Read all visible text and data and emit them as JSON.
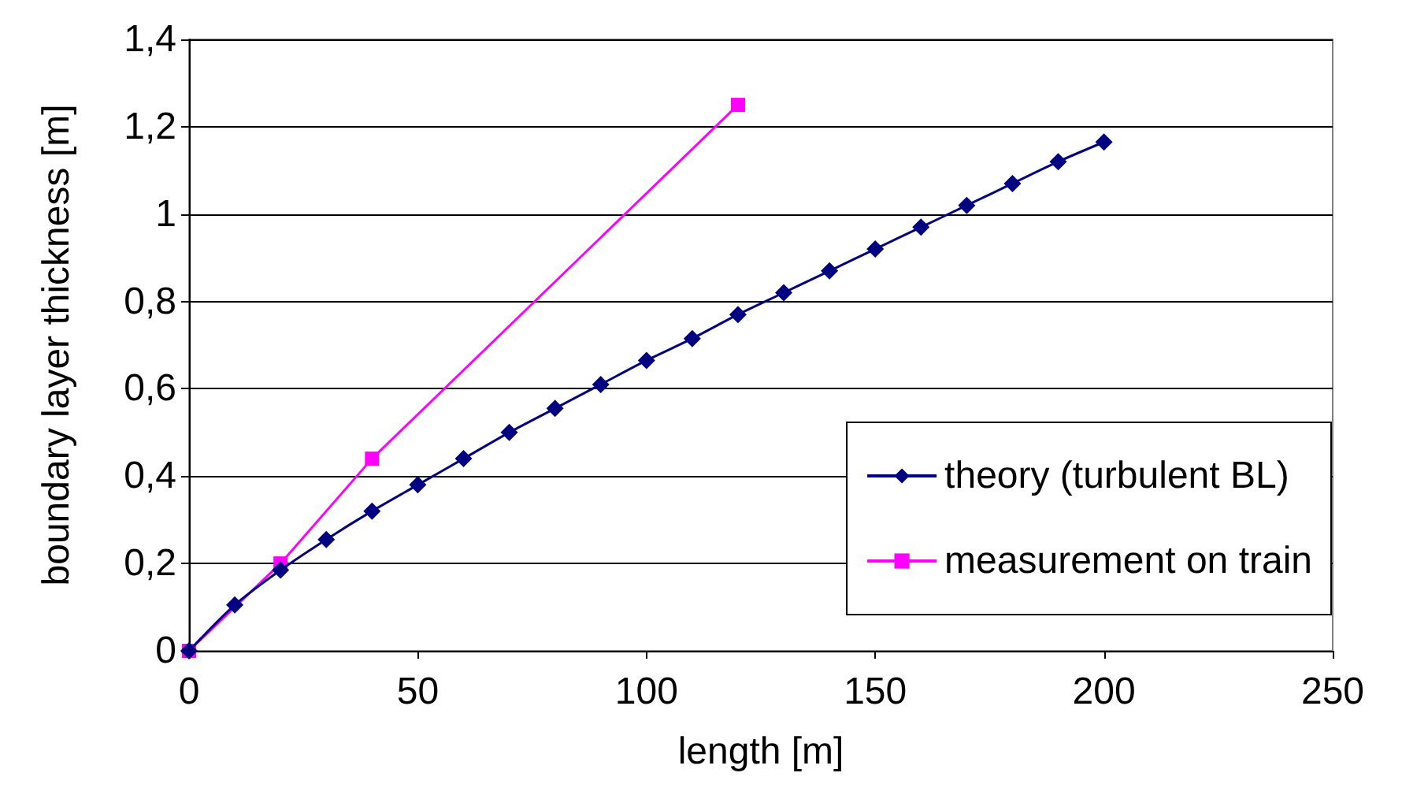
{
  "chart_data": {
    "type": "line",
    "xlabel": "length [m]",
    "ylabel": "boundary layer thickness [m]",
    "xlim": [
      0,
      250
    ],
    "xticks": [
      0,
      50,
      100,
      150,
      200,
      250
    ],
    "ylim": [
      0,
      1.4
    ],
    "yticks": [
      0,
      {
        "value": 0.2,
        "label": "0,2"
      },
      {
        "value": 0.4,
        "label": "0,4"
      },
      {
        "value": 0.6,
        "label": "0,6"
      },
      {
        "value": 0.8,
        "label": "0,8"
      },
      1,
      {
        "value": 1.2,
        "label": "1,2"
      },
      {
        "value": 1.4,
        "label": "1,4"
      }
    ],
    "grid": "y",
    "legend": "bottom right",
    "series": [
      {
        "name": "theory (turbulent BL)",
        "color": "#000080",
        "marker": "diamond",
        "x": [
          0,
          10,
          20,
          30,
          40,
          50,
          60,
          70,
          80,
          90,
          100,
          110,
          120,
          130,
          140,
          150,
          160,
          170,
          180,
          190,
          200
        ],
        "values": [
          0,
          0.105,
          0.185,
          0.255,
          0.32,
          0.38,
          0.44,
          0.5,
          0.555,
          0.61,
          0.665,
          0.715,
          0.77,
          0.82,
          0.87,
          0.92,
          0.97,
          1.02,
          1.07,
          1.12,
          1.165
        ]
      },
      {
        "name": "measurement on train",
        "color": "#ff00ff",
        "marker": "square",
        "x": [
          0,
          20,
          40,
          120
        ],
        "values": [
          0,
          0.2,
          0.44,
          1.25
        ]
      }
    ]
  }
}
